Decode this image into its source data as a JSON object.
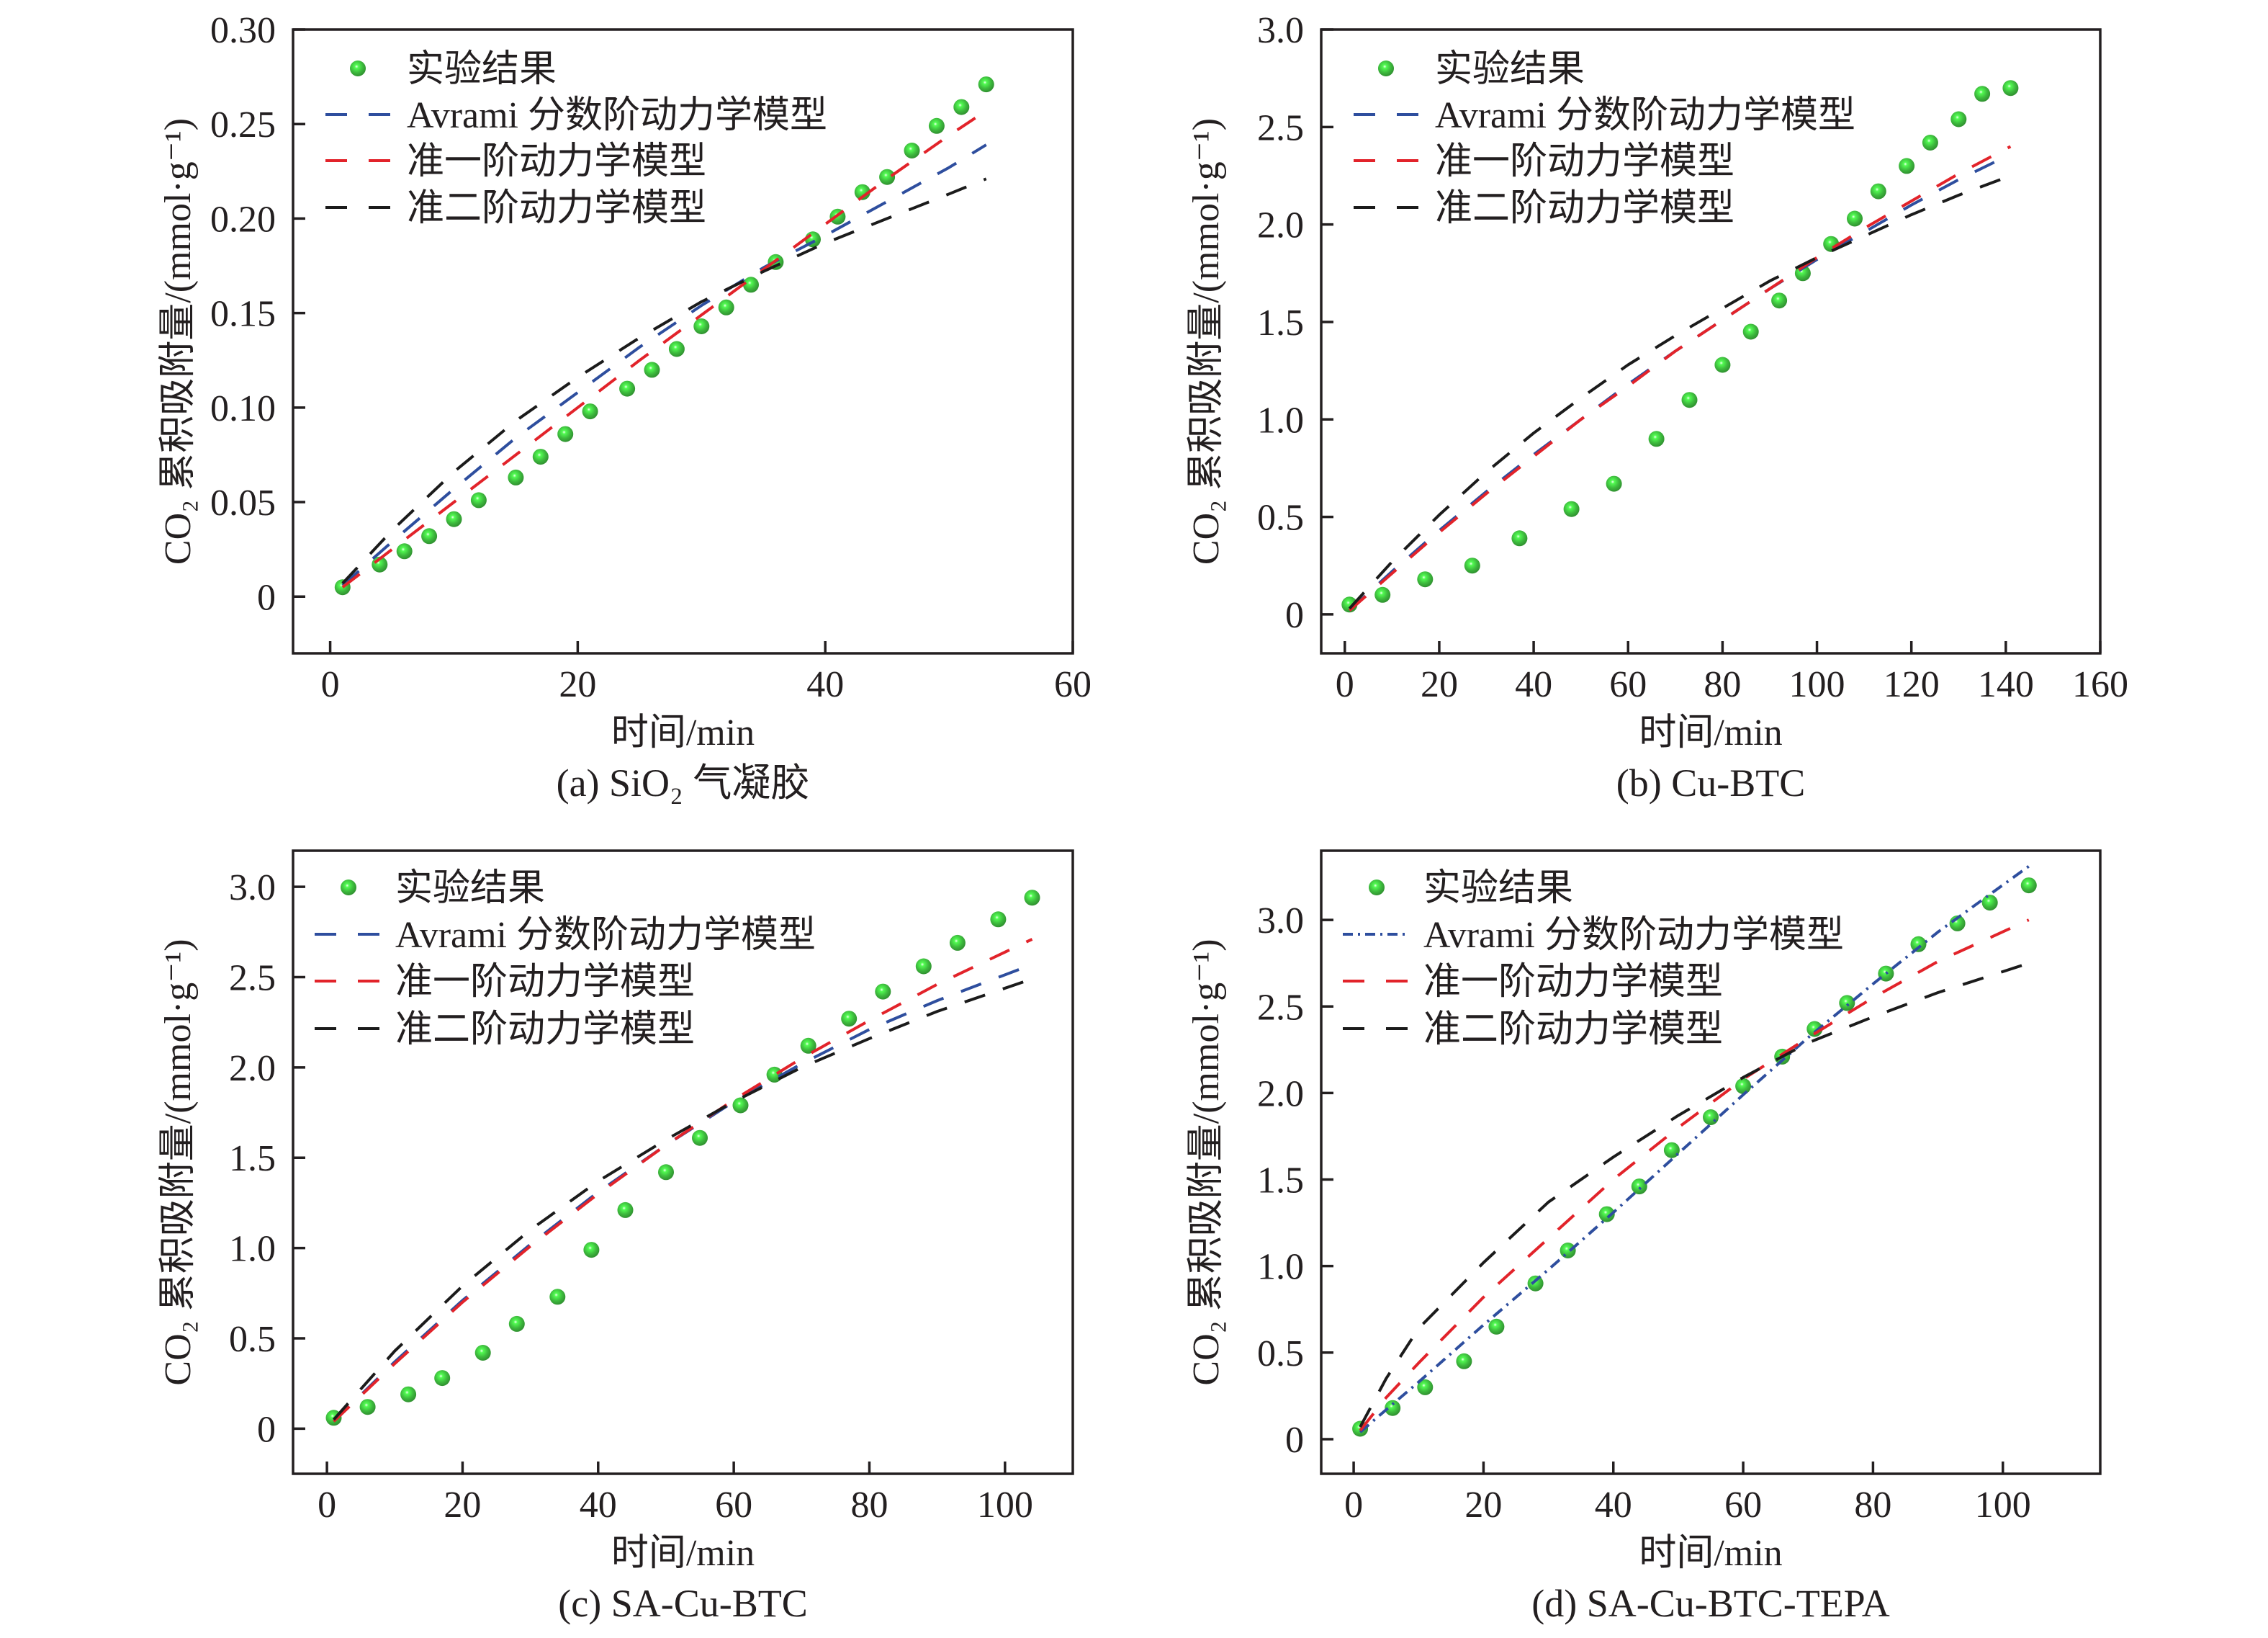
{
  "chart_data": [
    {
      "type": "scatter",
      "caption": "(a) SiO₂ 气凝胶",
      "xlabel": "时间/min",
      "ylabel": "CO₂ 累积吸附量/(mmol·g⁻¹)",
      "xlim": [
        -3,
        60
      ],
      "ylim": [
        -0.03,
        0.3
      ],
      "xticks": [
        0,
        20,
        40,
        60
      ],
      "xtick_labels": [
        "0",
        "20",
        "40",
        "60"
      ],
      "yticks": [
        0,
        0.05,
        0.1,
        0.15,
        0.2,
        0.25,
        0.3
      ],
      "ytick_labels": [
        "0",
        "0.05",
        "0.10",
        "0.15",
        "0.20",
        "0.25",
        "0.30"
      ],
      "grid": false,
      "legend_position": "top-left",
      "series": [
        {
          "name": "实验结果",
          "kind": "scatter",
          "color": "#3dba3d",
          "x": [
            1,
            4,
            6,
            8,
            10,
            12,
            15,
            17,
            19,
            21,
            24,
            26,
            28,
            30,
            32,
            34,
            36,
            39,
            41,
            43,
            45,
            47,
            49,
            51,
            53
          ],
          "y": [
            0.005,
            0.017,
            0.024,
            0.032,
            0.041,
            0.051,
            0.063,
            0.074,
            0.086,
            0.098,
            0.11,
            0.12,
            0.131,
            0.143,
            0.153,
            0.165,
            0.177,
            0.189,
            0.201,
            0.214,
            0.222,
            0.236,
            0.249,
            0.259,
            0.271
          ]
        },
        {
          "name": "Avrami 分数阶动力学模型",
          "kind": "line",
          "style": "dashed",
          "color": "#2e4e9e",
          "x": [
            1,
            5,
            10,
            15,
            20,
            25,
            30,
            35,
            40,
            45,
            50,
            53
          ],
          "y": [
            0.006,
            0.029,
            0.057,
            0.084,
            0.108,
            0.132,
            0.154,
            0.174,
            0.191,
            0.209,
            0.227,
            0.239
          ]
        },
        {
          "name": "准一阶动力学模型",
          "kind": "line",
          "style": "dashed",
          "color": "#e2232a",
          "x": [
            1,
            5,
            10,
            15,
            20,
            25,
            30,
            35,
            40,
            45,
            50,
            53
          ],
          "y": [
            0.005,
            0.025,
            0.05,
            0.075,
            0.1,
            0.125,
            0.149,
            0.173,
            0.197,
            0.221,
            0.244,
            0.257
          ]
        },
        {
          "name": "准二阶动力学模型",
          "kind": "line",
          "style": "dashed",
          "color": "#1b1b1b",
          "x": [
            1,
            5,
            10,
            15,
            20,
            25,
            30,
            35,
            40,
            45,
            50,
            53
          ],
          "y": [
            0.007,
            0.035,
            0.066,
            0.093,
            0.116,
            0.137,
            0.156,
            0.172,
            0.187,
            0.2,
            0.213,
            0.221
          ]
        }
      ]
    },
    {
      "type": "scatter",
      "caption": "(b) Cu-BTC",
      "xlabel": "时间/min",
      "ylabel": "CO₂ 累积吸附量/(mmol·g⁻¹)",
      "xlim": [
        -5,
        160
      ],
      "ylim": [
        -0.2,
        3.0
      ],
      "xticks": [
        0,
        20,
        40,
        60,
        80,
        100,
        120,
        140,
        160
      ],
      "xtick_labels": [
        "0",
        "20",
        "40",
        "60",
        "80",
        "100",
        "120",
        "140",
        "160"
      ],
      "yticks": [
        0,
        0.5,
        1.0,
        1.5,
        2.0,
        2.5,
        3.0
      ],
      "ytick_labels": [
        "0",
        "0.5",
        "1.0",
        "1.5",
        "2.0",
        "2.5",
        "3.0"
      ],
      "grid": false,
      "legend_position": "top-left",
      "series": [
        {
          "name": "实验结果",
          "kind": "scatter",
          "color": "#3dba3d",
          "x": [
            1,
            8,
            17,
            27,
            37,
            48,
            57,
            66,
            73,
            80,
            86,
            92,
            97,
            103,
            108,
            113,
            119,
            124,
            130,
            135,
            141
          ],
          "y": [
            0.05,
            0.1,
            0.18,
            0.25,
            0.39,
            0.54,
            0.67,
            0.9,
            1.1,
            1.28,
            1.45,
            1.61,
            1.75,
            1.9,
            2.03,
            2.17,
            2.3,
            2.42,
            2.54,
            2.67,
            2.7
          ]
        },
        {
          "name": "Avrami 分数阶动力学模型",
          "kind": "line",
          "style": "dashed",
          "color": "#2e4e9e",
          "x": [
            1,
            10,
            20,
            30,
            40,
            50,
            60,
            70,
            80,
            90,
            100,
            110,
            120,
            130,
            141
          ],
          "y": [
            0.02,
            0.22,
            0.43,
            0.63,
            0.82,
            1.0,
            1.18,
            1.35,
            1.51,
            1.67,
            1.82,
            1.96,
            2.1,
            2.23,
            2.36
          ]
        },
        {
          "name": "准一阶动力学模型",
          "kind": "line",
          "style": "dashed",
          "color": "#e2232a",
          "x": [
            1,
            10,
            20,
            30,
            40,
            50,
            60,
            70,
            80,
            90,
            100,
            110,
            120,
            130,
            141
          ],
          "y": [
            0.02,
            0.21,
            0.42,
            0.62,
            0.81,
            1.0,
            1.17,
            1.35,
            1.51,
            1.67,
            1.83,
            1.98,
            2.12,
            2.26,
            2.4
          ]
        },
        {
          "name": "准二阶动力学模型",
          "kind": "line",
          "style": "dashed",
          "color": "#1b1b1b",
          "x": [
            1,
            10,
            20,
            30,
            40,
            50,
            60,
            70,
            80,
            90,
            100,
            110,
            120,
            130,
            141
          ],
          "y": [
            0.03,
            0.27,
            0.51,
            0.73,
            0.93,
            1.11,
            1.28,
            1.43,
            1.57,
            1.71,
            1.83,
            1.94,
            2.05,
            2.15,
            2.25
          ]
        }
      ]
    },
    {
      "type": "scatter",
      "caption": "(c) SA-Cu-BTC",
      "xlabel": "时间/min",
      "ylabel": "CO₂ 累积吸附量/(mmol·g⁻¹)",
      "xlim": [
        -5,
        110
      ],
      "ylim": [
        -0.25,
        3.2
      ],
      "xticks": [
        0,
        20,
        40,
        60,
        80,
        100
      ],
      "xtick_labels": [
        "0",
        "20",
        "40",
        "60",
        "80",
        "100"
      ],
      "yticks": [
        0,
        0.5,
        1.0,
        1.5,
        2.0,
        2.5,
        3.0
      ],
      "ytick_labels": [
        "0",
        "0.5",
        "1.0",
        "1.5",
        "2.0",
        "2.5",
        "3.0"
      ],
      "grid": false,
      "legend_position": "top-left",
      "series": [
        {
          "name": "实验结果",
          "kind": "scatter",
          "color": "#3dba3d",
          "x": [
            1,
            6,
            12,
            17,
            23,
            28,
            34,
            39,
            44,
            50,
            55,
            61,
            66,
            71,
            77,
            82,
            88,
            93,
            99,
            104
          ],
          "y": [
            0.06,
            0.12,
            0.19,
            0.28,
            0.42,
            0.58,
            0.73,
            0.99,
            1.21,
            1.42,
            1.61,
            1.79,
            1.96,
            2.12,
            2.27,
            2.42,
            2.56,
            2.69,
            2.82,
            2.94
          ]
        },
        {
          "name": "Avrami 分数阶动力学模型",
          "kind": "line",
          "style": "dashed",
          "color": "#2e4e9e",
          "x": [
            1,
            10,
            20,
            30,
            40,
            50,
            60,
            70,
            80,
            90,
            104
          ],
          "y": [
            0.04,
            0.37,
            0.71,
            1.02,
            1.31,
            1.57,
            1.81,
            2.02,
            2.21,
            2.37,
            2.57
          ]
        },
        {
          "name": "准一阶动力学模型",
          "kind": "line",
          "style": "dashed",
          "color": "#e2232a",
          "x": [
            1,
            10,
            20,
            30,
            40,
            50,
            60,
            70,
            80,
            90,
            104
          ],
          "y": [
            0.04,
            0.36,
            0.7,
            1.01,
            1.3,
            1.57,
            1.82,
            2.05,
            2.26,
            2.46,
            2.71
          ]
        },
        {
          "name": "准二阶动力学模型",
          "kind": "line",
          "style": "dashed",
          "color": "#1b1b1b",
          "x": [
            1,
            10,
            20,
            30,
            40,
            50,
            60,
            70,
            80,
            90,
            104
          ],
          "y": [
            0.05,
            0.43,
            0.79,
            1.1,
            1.37,
            1.6,
            1.81,
            2.0,
            2.16,
            2.31,
            2.49
          ]
        }
      ]
    },
    {
      "type": "scatter",
      "caption": "(d) SA-Cu-BTC-TEPA",
      "xlabel": "时间/min",
      "ylabel": "CO₂ 累积吸附量/(mmol·g⁻¹)",
      "xlim": [
        -5,
        115
      ],
      "ylim": [
        -0.2,
        3.4
      ],
      "xticks": [
        0,
        20,
        40,
        60,
        80,
        100
      ],
      "xtick_labels": [
        "0",
        "20",
        "40",
        "60",
        "80",
        "100"
      ],
      "yticks": [
        0,
        0.5,
        1.0,
        1.5,
        2.0,
        2.5,
        3.0
      ],
      "ytick_labels": [
        "0",
        "0.5",
        "1.0",
        "1.5",
        "2.0",
        "2.5",
        "3.0"
      ],
      "grid": false,
      "legend_position": "top-left",
      "series": [
        {
          "name": "实验结果",
          "kind": "scatter",
          "color": "#3dba3d",
          "x": [
            1,
            6,
            11,
            17,
            22,
            28,
            33,
            39,
            44,
            49,
            55,
            60,
            66,
            71,
            76,
            82,
            87,
            93,
            98,
            104
          ],
          "y": [
            0.06,
            0.18,
            0.3,
            0.45,
            0.65,
            0.9,
            1.09,
            1.3,
            1.46,
            1.67,
            1.86,
            2.04,
            2.21,
            2.37,
            2.52,
            2.69,
            2.86,
            2.98,
            3.1,
            3.2
          ]
        },
        {
          "name": "Avrami 分数阶动力学模型",
          "kind": "line",
          "style": "dashdot",
          "color": "#2e4e9e",
          "x": [
            1,
            5,
            10,
            20,
            30,
            40,
            50,
            60,
            70,
            80,
            90,
            104
          ],
          "y": [
            0.04,
            0.17,
            0.33,
            0.66,
            0.98,
            1.31,
            1.65,
            1.99,
            2.32,
            2.63,
            2.93,
            3.31
          ]
        },
        {
          "name": "准一阶动力学模型",
          "kind": "line",
          "style": "dashed",
          "color": "#e2232a",
          "x": [
            1,
            5,
            10,
            20,
            30,
            40,
            50,
            60,
            70,
            80,
            90,
            104
          ],
          "y": [
            0.05,
            0.24,
            0.44,
            0.82,
            1.16,
            1.5,
            1.8,
            2.08,
            2.32,
            2.55,
            2.76,
            3.0
          ]
        },
        {
          "name": "准二阶动力学模型",
          "kind": "line",
          "style": "dashed",
          "color": "#1b1b1b",
          "x": [
            1,
            5,
            10,
            20,
            30,
            40,
            50,
            60,
            70,
            80,
            90,
            104
          ],
          "y": [
            0.07,
            0.35,
            0.64,
            1.02,
            1.37,
            1.63,
            1.87,
            2.09,
            2.29,
            2.44,
            2.58,
            2.75
          ]
        }
      ]
    }
  ]
}
